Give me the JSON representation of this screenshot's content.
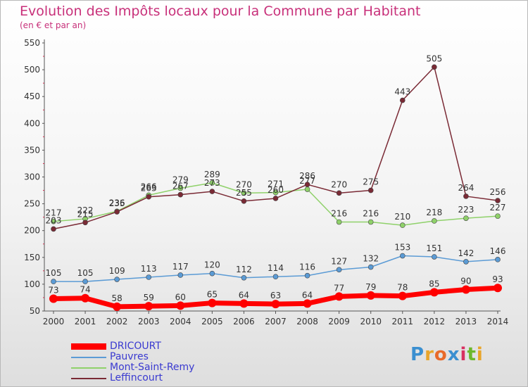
{
  "header": {
    "title": "Evolution des Impôts locaux pour la Commune par Habitant",
    "subtitle": "(en € et par an)"
  },
  "logo": {
    "text": "Proxiti",
    "letters": [
      {
        "ch": "P",
        "color": "#3a8fd0"
      },
      {
        "ch": "r",
        "color": "#e8a52a"
      },
      {
        "ch": "o",
        "color": "#e86a2a"
      },
      {
        "ch": "x",
        "color": "#3a8fd0"
      },
      {
        "ch": "i",
        "color": "#d83060"
      },
      {
        "ch": "t",
        "color": "#6cb82c"
      },
      {
        "ch": "i",
        "color": "#e8a52a"
      }
    ]
  },
  "chart_data": {
    "type": "line",
    "title": "Evolution des Impôts locaux pour la Commune par Habitant",
    "subtitle": "(en € et par an)",
    "x": [
      "2000",
      "2001",
      "2002",
      "2003",
      "2004",
      "2005",
      "2006",
      "2007",
      "2008",
      "2009",
      "2010",
      "2011",
      "2012",
      "2013",
      "2014"
    ],
    "ylim": [
      50,
      550
    ],
    "yticks": [
      50,
      100,
      150,
      200,
      250,
      300,
      350,
      400,
      450,
      500,
      550
    ],
    "grid": false,
    "legend_position": "bottom-left",
    "series": [
      {
        "name": "DRICOURT",
        "color": "#ff0000",
        "width": 7,
        "marker": 6,
        "values": [
          73,
          74,
          58,
          59,
          60,
          65,
          64,
          63,
          64,
          77,
          79,
          78,
          85,
          90,
          93
        ]
      },
      {
        "name": "Pauvres",
        "color": "#5b9bd5",
        "width": 1.5,
        "marker": 3.5,
        "values": [
          105,
          105,
          109,
          113,
          117,
          120,
          112,
          114,
          116,
          127,
          132,
          153,
          151,
          142,
          146
        ]
      },
      {
        "name": "Mont-Saint-Remy",
        "color": "#8fd16a",
        "width": 1.5,
        "marker": 3.5,
        "values": [
          217,
          222,
          236,
          266,
          279,
          289,
          270,
          271,
          277,
          216,
          216,
          210,
          218,
          223,
          227
        ]
      },
      {
        "name": "Leffincourt",
        "color": "#7a2a35",
        "width": 1.5,
        "marker": 3.5,
        "values": [
          203,
          215,
          235,
          263,
          267,
          273,
          255,
          260,
          286,
          270,
          275,
          443,
          505,
          264,
          256
        ]
      }
    ]
  }
}
